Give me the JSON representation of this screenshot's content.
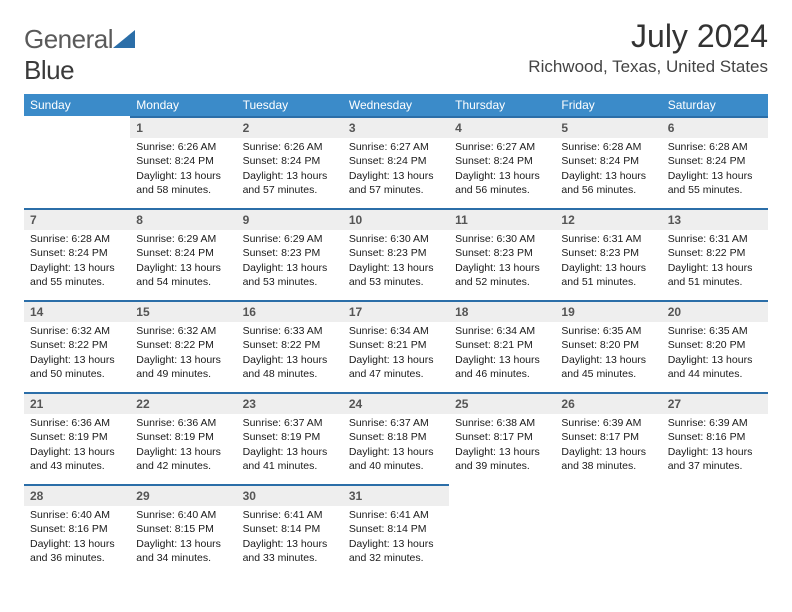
{
  "brand": {
    "name1": "General",
    "name2": "Blue"
  },
  "title": "July 2024",
  "location": "Richwood, Texas, United States",
  "header_color": "#3b8bc9",
  "header_border": "#2b6ea8",
  "daynum_bg": "#eeeeee",
  "days_of_week": [
    "Sunday",
    "Monday",
    "Tuesday",
    "Wednesday",
    "Thursday",
    "Friday",
    "Saturday"
  ],
  "weeks": [
    [
      null,
      {
        "n": "1",
        "sr": "Sunrise: 6:26 AM",
        "ss": "Sunset: 8:24 PM",
        "dl": "Daylight: 13 hours and 58 minutes."
      },
      {
        "n": "2",
        "sr": "Sunrise: 6:26 AM",
        "ss": "Sunset: 8:24 PM",
        "dl": "Daylight: 13 hours and 57 minutes."
      },
      {
        "n": "3",
        "sr": "Sunrise: 6:27 AM",
        "ss": "Sunset: 8:24 PM",
        "dl": "Daylight: 13 hours and 57 minutes."
      },
      {
        "n": "4",
        "sr": "Sunrise: 6:27 AM",
        "ss": "Sunset: 8:24 PM",
        "dl": "Daylight: 13 hours and 56 minutes."
      },
      {
        "n": "5",
        "sr": "Sunrise: 6:28 AM",
        "ss": "Sunset: 8:24 PM",
        "dl": "Daylight: 13 hours and 56 minutes."
      },
      {
        "n": "6",
        "sr": "Sunrise: 6:28 AM",
        "ss": "Sunset: 8:24 PM",
        "dl": "Daylight: 13 hours and 55 minutes."
      }
    ],
    [
      {
        "n": "7",
        "sr": "Sunrise: 6:28 AM",
        "ss": "Sunset: 8:24 PM",
        "dl": "Daylight: 13 hours and 55 minutes."
      },
      {
        "n": "8",
        "sr": "Sunrise: 6:29 AM",
        "ss": "Sunset: 8:24 PM",
        "dl": "Daylight: 13 hours and 54 minutes."
      },
      {
        "n": "9",
        "sr": "Sunrise: 6:29 AM",
        "ss": "Sunset: 8:23 PM",
        "dl": "Daylight: 13 hours and 53 minutes."
      },
      {
        "n": "10",
        "sr": "Sunrise: 6:30 AM",
        "ss": "Sunset: 8:23 PM",
        "dl": "Daylight: 13 hours and 53 minutes."
      },
      {
        "n": "11",
        "sr": "Sunrise: 6:30 AM",
        "ss": "Sunset: 8:23 PM",
        "dl": "Daylight: 13 hours and 52 minutes."
      },
      {
        "n": "12",
        "sr": "Sunrise: 6:31 AM",
        "ss": "Sunset: 8:23 PM",
        "dl": "Daylight: 13 hours and 51 minutes."
      },
      {
        "n": "13",
        "sr": "Sunrise: 6:31 AM",
        "ss": "Sunset: 8:22 PM",
        "dl": "Daylight: 13 hours and 51 minutes."
      }
    ],
    [
      {
        "n": "14",
        "sr": "Sunrise: 6:32 AM",
        "ss": "Sunset: 8:22 PM",
        "dl": "Daylight: 13 hours and 50 minutes."
      },
      {
        "n": "15",
        "sr": "Sunrise: 6:32 AM",
        "ss": "Sunset: 8:22 PM",
        "dl": "Daylight: 13 hours and 49 minutes."
      },
      {
        "n": "16",
        "sr": "Sunrise: 6:33 AM",
        "ss": "Sunset: 8:22 PM",
        "dl": "Daylight: 13 hours and 48 minutes."
      },
      {
        "n": "17",
        "sr": "Sunrise: 6:34 AM",
        "ss": "Sunset: 8:21 PM",
        "dl": "Daylight: 13 hours and 47 minutes."
      },
      {
        "n": "18",
        "sr": "Sunrise: 6:34 AM",
        "ss": "Sunset: 8:21 PM",
        "dl": "Daylight: 13 hours and 46 minutes."
      },
      {
        "n": "19",
        "sr": "Sunrise: 6:35 AM",
        "ss": "Sunset: 8:20 PM",
        "dl": "Daylight: 13 hours and 45 minutes."
      },
      {
        "n": "20",
        "sr": "Sunrise: 6:35 AM",
        "ss": "Sunset: 8:20 PM",
        "dl": "Daylight: 13 hours and 44 minutes."
      }
    ],
    [
      {
        "n": "21",
        "sr": "Sunrise: 6:36 AM",
        "ss": "Sunset: 8:19 PM",
        "dl": "Daylight: 13 hours and 43 minutes."
      },
      {
        "n": "22",
        "sr": "Sunrise: 6:36 AM",
        "ss": "Sunset: 8:19 PM",
        "dl": "Daylight: 13 hours and 42 minutes."
      },
      {
        "n": "23",
        "sr": "Sunrise: 6:37 AM",
        "ss": "Sunset: 8:19 PM",
        "dl": "Daylight: 13 hours and 41 minutes."
      },
      {
        "n": "24",
        "sr": "Sunrise: 6:37 AM",
        "ss": "Sunset: 8:18 PM",
        "dl": "Daylight: 13 hours and 40 minutes."
      },
      {
        "n": "25",
        "sr": "Sunrise: 6:38 AM",
        "ss": "Sunset: 8:17 PM",
        "dl": "Daylight: 13 hours and 39 minutes."
      },
      {
        "n": "26",
        "sr": "Sunrise: 6:39 AM",
        "ss": "Sunset: 8:17 PM",
        "dl": "Daylight: 13 hours and 38 minutes."
      },
      {
        "n": "27",
        "sr": "Sunrise: 6:39 AM",
        "ss": "Sunset: 8:16 PM",
        "dl": "Daylight: 13 hours and 37 minutes."
      }
    ],
    [
      {
        "n": "28",
        "sr": "Sunrise: 6:40 AM",
        "ss": "Sunset: 8:16 PM",
        "dl": "Daylight: 13 hours and 36 minutes."
      },
      {
        "n": "29",
        "sr": "Sunrise: 6:40 AM",
        "ss": "Sunset: 8:15 PM",
        "dl": "Daylight: 13 hours and 34 minutes."
      },
      {
        "n": "30",
        "sr": "Sunrise: 6:41 AM",
        "ss": "Sunset: 8:14 PM",
        "dl": "Daylight: 13 hours and 33 minutes."
      },
      {
        "n": "31",
        "sr": "Sunrise: 6:41 AM",
        "ss": "Sunset: 8:14 PM",
        "dl": "Daylight: 13 hours and 32 minutes."
      },
      null,
      null,
      null
    ]
  ]
}
